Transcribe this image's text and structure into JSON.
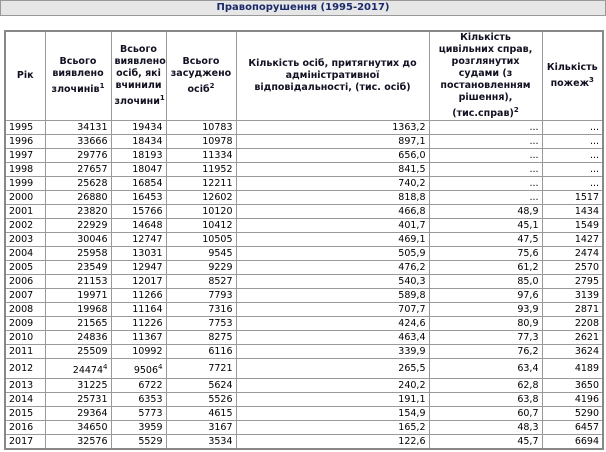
{
  "title": "Правопорушення (1995-2017)",
  "table": {
    "header": [
      "Рік",
      {
        "text": "Всього виявлено злочинів",
        "sup": "1"
      },
      {
        "text": "Всього виявлено осіб, які вчинили злочини",
        "sup": "1"
      },
      {
        "text": "Всього засуджено осіб",
        "sup": "2"
      },
      "Кількість осіб, притягнутих до адміністративної відповідальності, (тис. осіб)",
      {
        "text": "Кількість цивільних справ, розглянутих судами (з постановленням рішення), (тис.справ)",
        "sup": "2"
      },
      {
        "text": "Кількість пожеж",
        "sup": "3"
      }
    ],
    "rows": [
      [
        "1995",
        "34131",
        "19434",
        "10783",
        "1363,2",
        "...",
        "..."
      ],
      [
        "1996",
        "33666",
        "18434",
        "10978",
        "897,1",
        "...",
        "..."
      ],
      [
        "1997",
        "29776",
        "18193",
        "11334",
        "656,0",
        "...",
        "..."
      ],
      [
        "1998",
        "27657",
        "18047",
        "11952",
        "841,5",
        "...",
        "..."
      ],
      [
        "1999",
        "25628",
        "16854",
        "12211",
        "740,2",
        "...",
        "..."
      ],
      [
        "2000",
        "26880",
        "16453",
        "12602",
        "818,8",
        "...",
        "1517"
      ],
      [
        "2001",
        "23820",
        "15766",
        "10120",
        "466,8",
        "48,9",
        "1434"
      ],
      [
        "2002",
        "22929",
        "14648",
        "10412",
        "401,7",
        "45,1",
        "1549"
      ],
      [
        "2003",
        "30046",
        "12747",
        "10505",
        "469,1",
        "47,5",
        "1427"
      ],
      [
        "2004",
        "25958",
        "13031",
        "9545",
        "505,9",
        "75,6",
        "2474"
      ],
      [
        "2005",
        "23549",
        "12947",
        "9229",
        "476,2",
        "61,2",
        "2570"
      ],
      [
        "2006",
        "21153",
        "12017",
        "8527",
        "540,3",
        "85,0",
        "2795"
      ],
      [
        "2007",
        "19971",
        "11266",
        "7793",
        "589,8",
        "97,6",
        "3139"
      ],
      [
        "2008",
        "19968",
        "11164",
        "7316",
        "707,7",
        "93,9",
        "2871"
      ],
      [
        "2009",
        "21565",
        "11226",
        "7753",
        "424,6",
        "80,9",
        "2208"
      ],
      [
        "2010",
        "24836",
        "11367",
        "8275",
        "463,4",
        "77,3",
        "2621"
      ],
      [
        "2011",
        "25509",
        "10992",
        "6116",
        "339,9",
        "76,2",
        "3624"
      ],
      [
        "2012",
        {
          "text": "24474",
          "sup": "4"
        },
        {
          "text": "9506",
          "sup": "4"
        },
        "7721",
        "265,5",
        "63,4",
        "4189"
      ],
      [
        "2013",
        "31225",
        "6722",
        "5624",
        "240,2",
        "62,8",
        "3650"
      ],
      [
        "2014",
        "25731",
        "6353",
        "5526",
        "191,1",
        "63,8",
        "4196"
      ],
      [
        "2015",
        "29364",
        "5773",
        "4615",
        "154,9",
        "60,7",
        "5290"
      ],
      [
        "2016",
        "34650",
        "3959",
        "3167",
        "165,2",
        "48,3",
        "6457"
      ],
      [
        "2017",
        "32576",
        "5529",
        "3534",
        "122,6",
        "45,7",
        "6694"
      ]
    ]
  }
}
